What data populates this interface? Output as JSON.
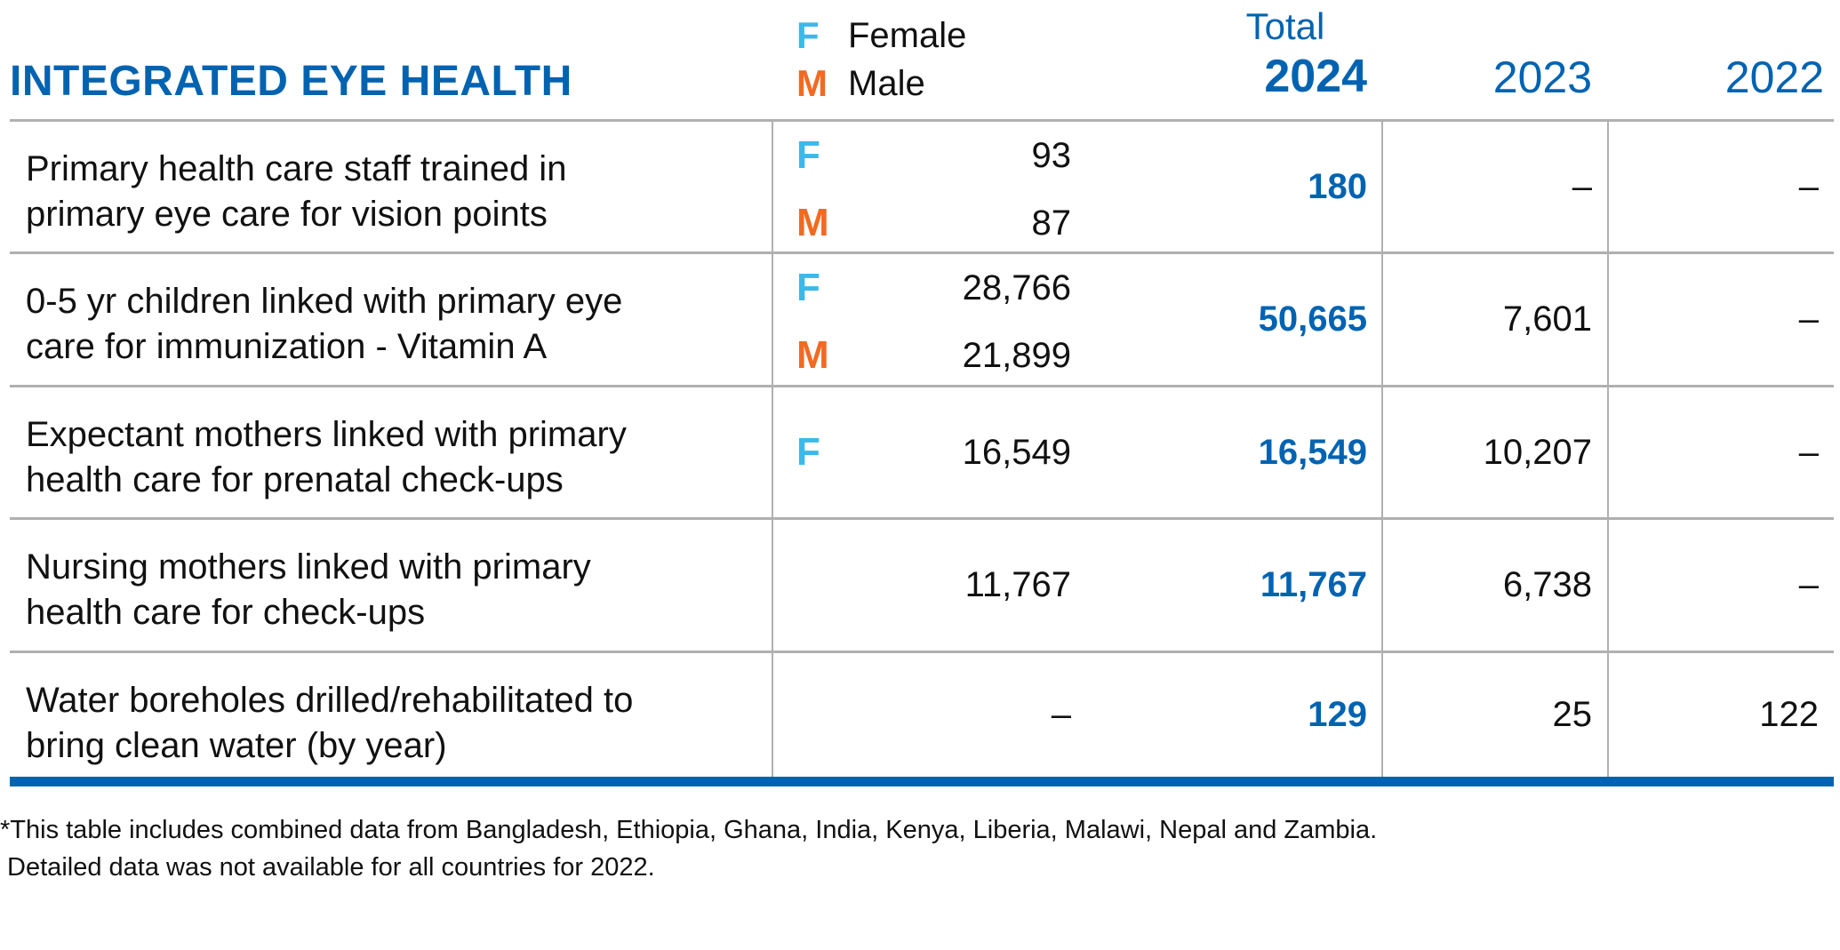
{
  "title": "INTEGRATED EYE HEALTH",
  "legend": {
    "female_letter": "F",
    "female_label": "Female",
    "male_letter": "M",
    "male_label": "Male"
  },
  "headers": {
    "total_label": "Total",
    "year_2024": "2024",
    "year_2023": "2023",
    "year_2022": "2022"
  },
  "rows": [
    {
      "label": [
        "Primary health care staff trained in",
        "primary eye care for vision points"
      ],
      "female": "93",
      "male": "87",
      "single": null,
      "total": "180",
      "y2023": "–",
      "y2022": "–"
    },
    {
      "label": [
        "0-5 yr children linked with primary eye",
        "care for immunization - Vitamin A"
      ],
      "female": "28,766",
      "male": "21,899",
      "single": null,
      "total": "50,665",
      "y2023": "7,601",
      "y2022": "–"
    },
    {
      "label": [
        "Expectant mothers linked with primary",
        "health care for prenatal check-ups"
      ],
      "female": "16,549",
      "male": null,
      "single": null,
      "total": "16,549",
      "y2023": "10,207",
      "y2022": "–"
    },
    {
      "label": [
        "Nursing mothers linked with primary",
        "health care for check-ups"
      ],
      "female": null,
      "male": null,
      "single": "11,767",
      "total": "11,767",
      "y2023": "6,738",
      "y2022": "–"
    },
    {
      "label": [
        "Water boreholes drilled/rehabilitated to",
        "bring clean water (by year)"
      ],
      "female": null,
      "male": null,
      "single": "–",
      "total": "129",
      "y2023": "25",
      "y2022": "122"
    }
  ],
  "footnote": [
    "*This table includes combined data from Bangladesh, Ethiopia, Ghana, India, Kenya, Liberia, Malawi, Nepal and Zambia.",
    " Detailed data was not available for all countries for 2022."
  ],
  "colors": {
    "blue": "#0063b1",
    "female": "#3bb9ea",
    "male": "#f26a22"
  }
}
